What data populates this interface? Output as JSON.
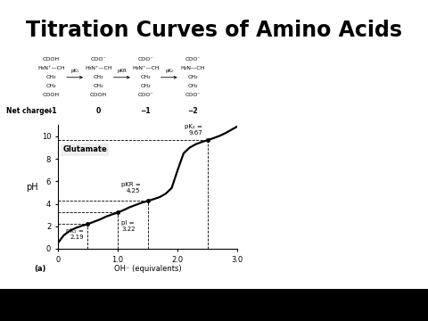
{
  "header": {
    "title": "Titration Curves of Amino Acids"
  },
  "species": {
    "net_charge_label": "Net charge:",
    "forms": [
      {
        "lines": [
          "COOH",
          "H₃N⁺—CH",
          "CH₂",
          "CH₂",
          "COOH"
        ],
        "net_charge": "+1"
      },
      {
        "lines": [
          "COO⁻",
          "H₃N⁺—CH",
          "CH₂",
          "CH₂",
          "COOH"
        ],
        "net_charge": "0"
      },
      {
        "lines": [
          "COO⁻",
          "H₃N⁺—CH",
          "CH₂",
          "CH₂",
          "COO⁻"
        ],
        "net_charge": "−1"
      },
      {
        "lines": [
          "COO⁻",
          "H₂N—CH",
          "CH₂",
          "CH₂",
          "COO⁻"
        ],
        "net_charge": "−2"
      }
    ],
    "steps": [
      "pK₁",
      "pKR",
      "pK₂"
    ]
  },
  "chart_data": {
    "type": "line",
    "title": "Glutamate",
    "panel_label": "(a)",
    "xlabel": "OH⁻ (equivalents)",
    "ylabel": "pH",
    "x": [
      0,
      0.1,
      0.2,
      0.3,
      0.4,
      0.5,
      0.6,
      0.7,
      0.8,
      0.9,
      1.0,
      1.1,
      1.2,
      1.3,
      1.4,
      1.5,
      1.6,
      1.7,
      1.8,
      1.9,
      2.0,
      2.1,
      2.2,
      2.3,
      2.4,
      2.5,
      2.6,
      2.7,
      2.8,
      2.9,
      3.0
    ],
    "values": [
      0.5,
      1.2,
      1.6,
      1.85,
      2.05,
      2.19,
      2.4,
      2.6,
      2.85,
      3.05,
      3.22,
      3.45,
      3.7,
      3.9,
      4.1,
      4.25,
      4.42,
      4.6,
      4.9,
      5.4,
      7.0,
      8.5,
      9.0,
      9.3,
      9.5,
      9.67,
      9.85,
      10.05,
      10.3,
      10.6,
      10.9
    ],
    "color": "#000000",
    "xlim": [
      0,
      3.0
    ],
    "xticks": [
      0,
      1.0,
      2.0,
      3.0
    ],
    "ylim": [
      0,
      11
    ],
    "yticks": [
      0,
      2,
      4,
      6,
      8,
      10
    ],
    "points": [
      {
        "label": "pK₁ =\n2.19",
        "x": 0.5,
        "y": 2.19
      },
      {
        "label": "pI =\n3.22",
        "x": 1.0,
        "y": 3.22
      },
      {
        "label": "pKR =\n4.25",
        "x": 1.5,
        "y": 4.25
      },
      {
        "label": "pK₂ =\n9.67",
        "x": 2.5,
        "y": 9.67
      }
    ]
  }
}
